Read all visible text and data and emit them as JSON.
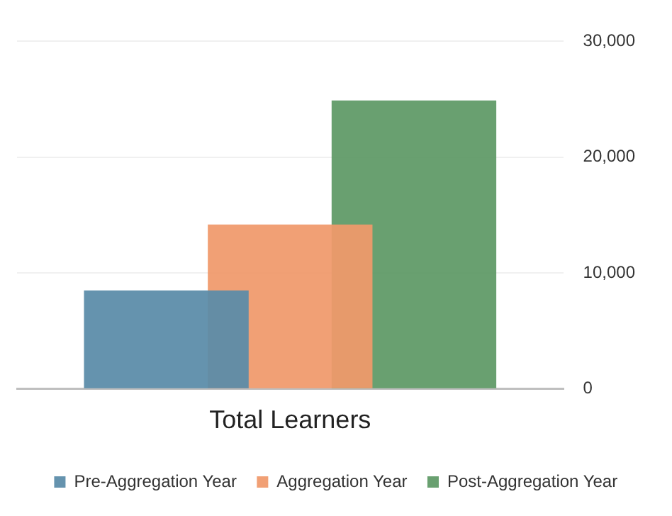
{
  "chart_data": {
    "type": "bar",
    "categories": [
      "Total Learners"
    ],
    "series": [
      {
        "name": "Pre-Aggregation Year",
        "color": "#5a8ba8",
        "values": [
          8500
        ]
      },
      {
        "name": "Aggregation Year",
        "color": "#f0996b",
        "values": [
          14200
        ]
      },
      {
        "name": "Post-Aggregation Year",
        "color": "#5e9966",
        "values": [
          24900
        ]
      }
    ],
    "ylim": [
      0,
      30000
    ],
    "yticks": [
      {
        "value": 0,
        "label": "0"
      },
      {
        "value": 10000,
        "label": "10,000"
      },
      {
        "value": 20000,
        "label": "20,000"
      },
      {
        "value": 30000,
        "label": "30,000"
      }
    ],
    "grid": "y",
    "legend": "bottom"
  }
}
